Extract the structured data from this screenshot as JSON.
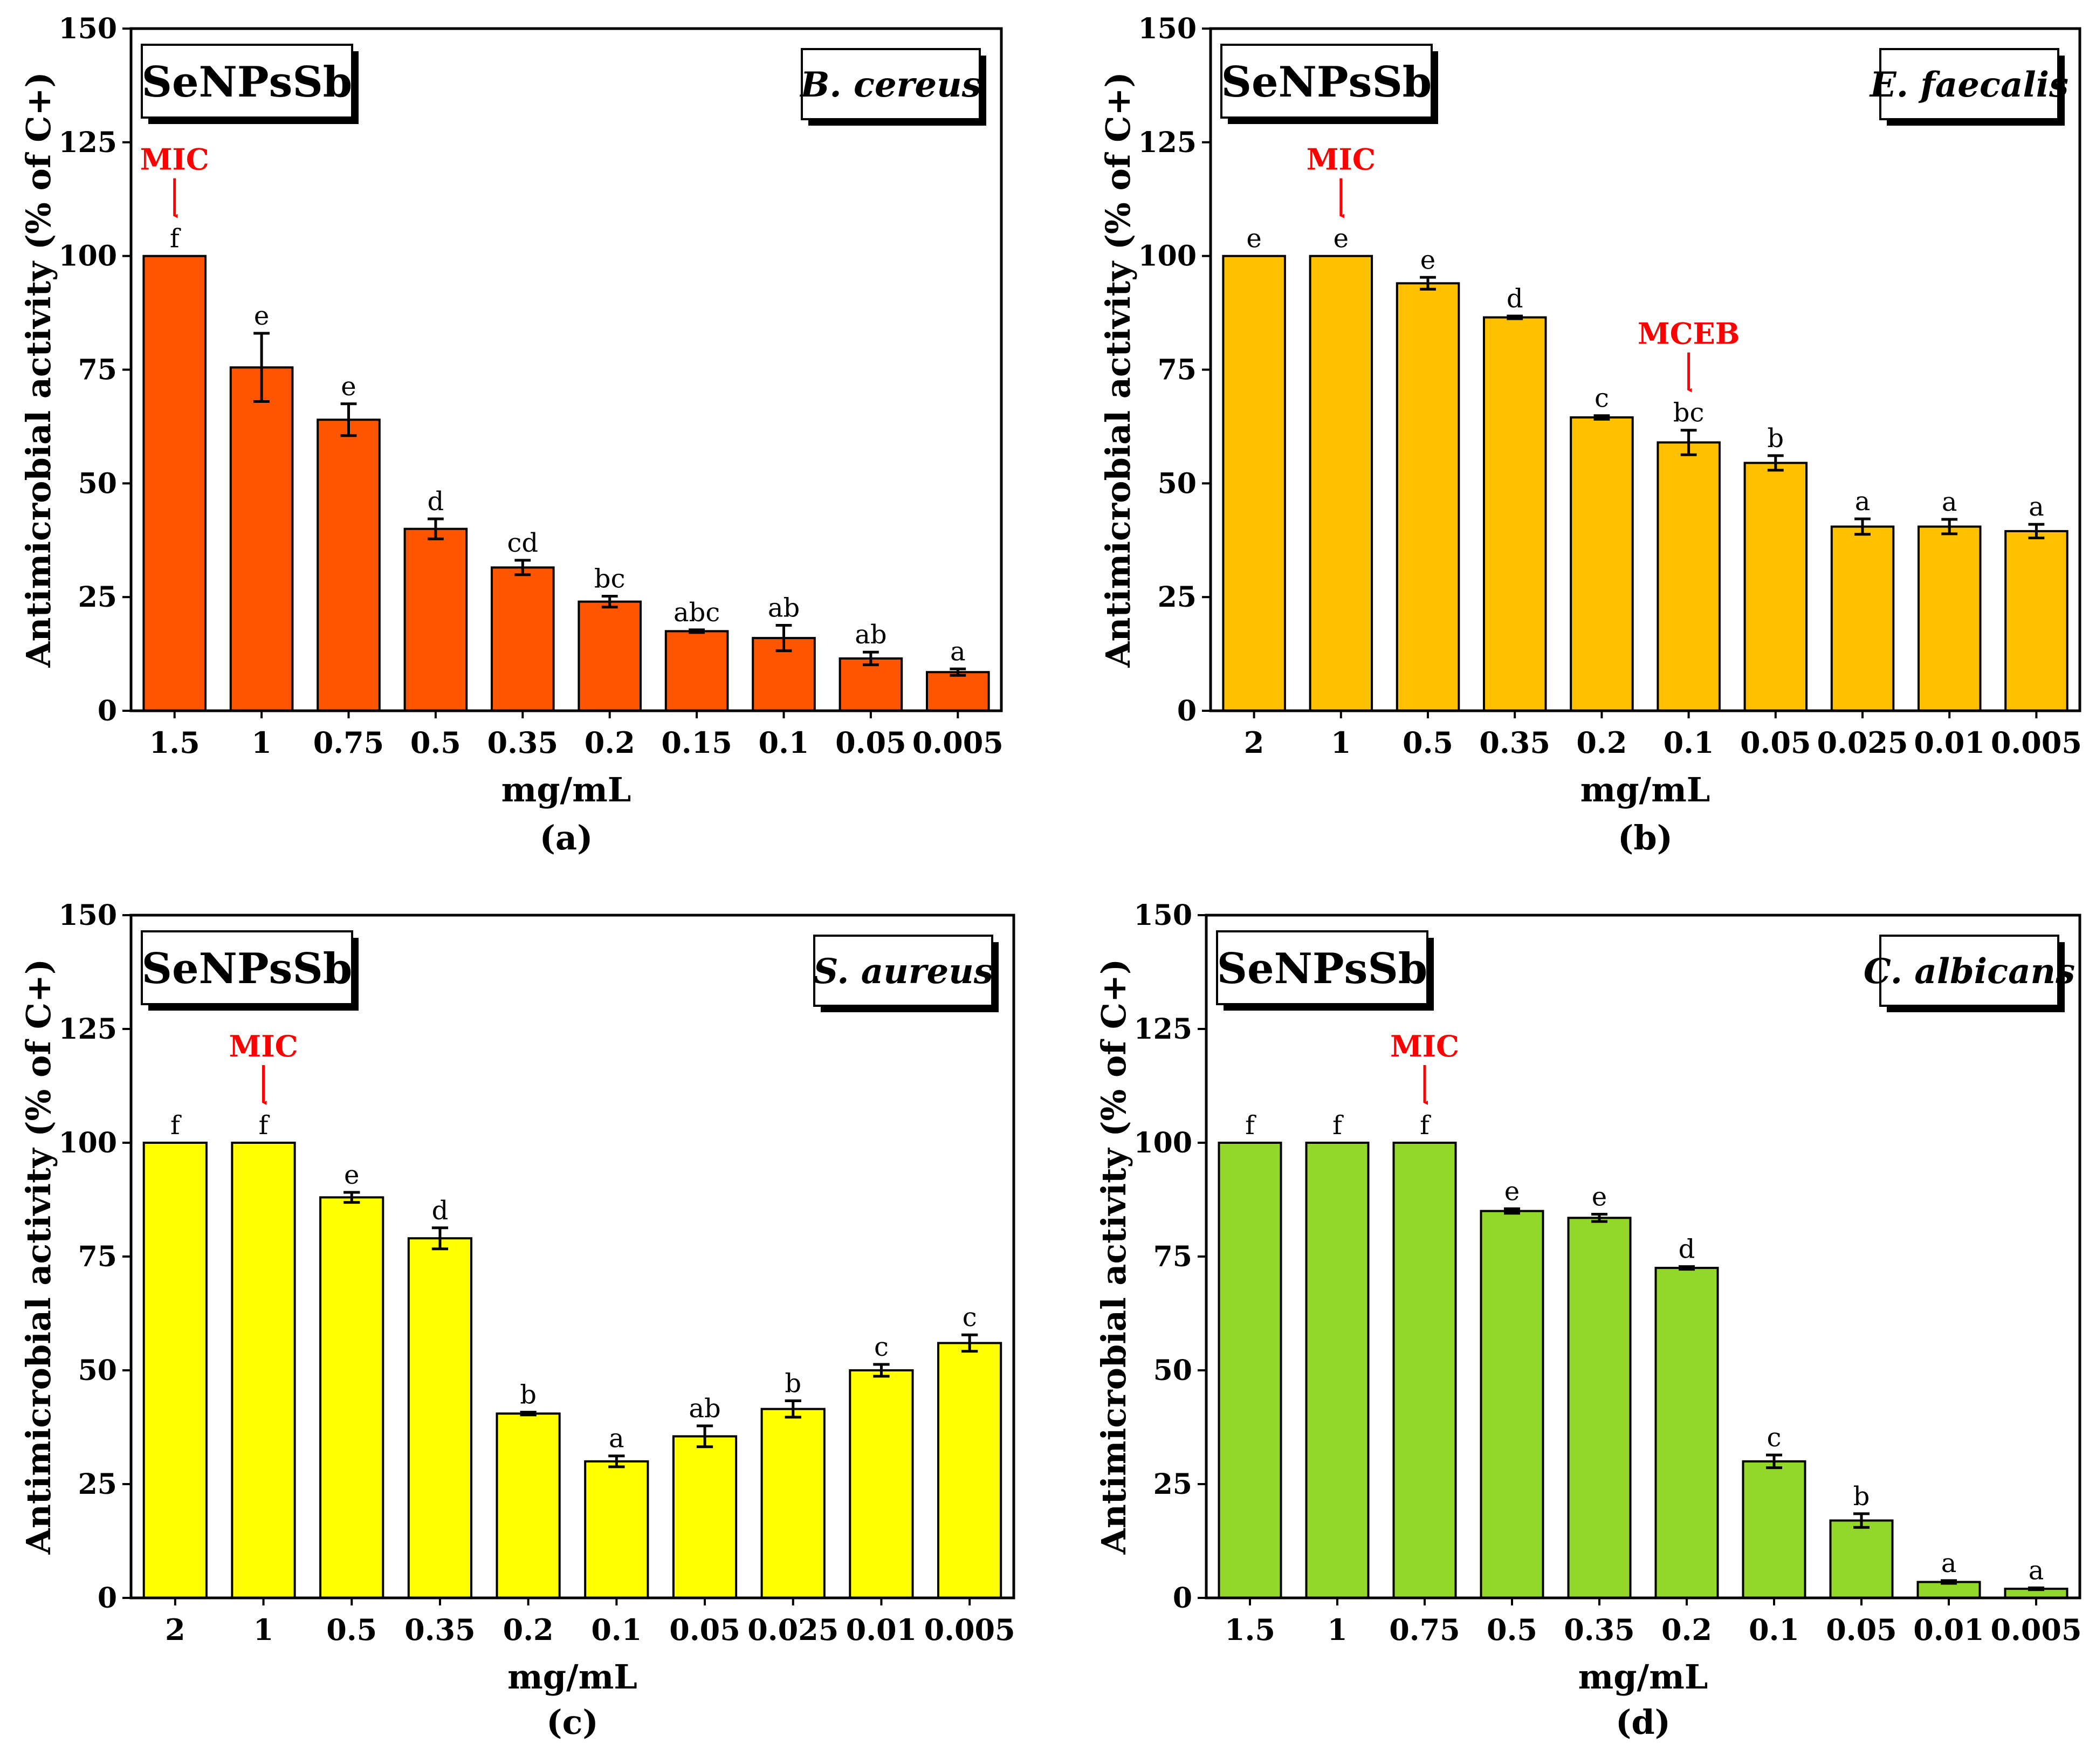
{
  "chart_data": [
    {
      "type": "bar",
      "panel_label": "(a)",
      "sample_label": "SeNPsSb",
      "organism": "B. cereus",
      "xlabel": "mg/mL",
      "ylabel": "Antimicrobial activity (% of C+)",
      "ylim": [
        0,
        150
      ],
      "yticks": [
        "0",
        "25",
        "50",
        "75",
        "100",
        "125",
        "150"
      ],
      "color": "#fe5500",
      "categories": [
        "1.5",
        "1",
        "0.75",
        "0.5",
        "0.35",
        "0.2",
        "0.15",
        "0.1",
        "0.05",
        "0.005"
      ],
      "values": [
        100,
        75.5,
        64,
        40,
        31.5,
        24,
        17.5,
        16,
        11.5,
        8.5
      ],
      "errors": [
        0,
        7.5,
        3.5,
        2.2,
        1.6,
        1.2,
        0.3,
        2.8,
        1.4,
        0.7
      ],
      "letters": [
        "f",
        "e",
        "e",
        "d",
        "cd",
        "bc",
        "abc",
        "ab",
        "ab",
        "a"
      ],
      "annotations": [
        {
          "text": "MIC",
          "index": 0
        }
      ]
    },
    {
      "type": "bar",
      "panel_label": "(b)",
      "sample_label": "SeNPsSb",
      "organism": "E. faecalis",
      "xlabel": "mg/mL",
      "ylabel": "Antimicrobial activity (% of C+)",
      "ylim": [
        0,
        150
      ],
      "yticks": [
        "0",
        "25",
        "50",
        "75",
        "100",
        "125",
        "150"
      ],
      "color": "#ffc000",
      "categories": [
        "2",
        "1",
        "0.5",
        "0.35",
        "0.2",
        "0.1",
        "0.05",
        "0.025",
        "0.01",
        "0.005"
      ],
      "values": [
        100,
        100,
        94,
        86.5,
        64.5,
        59,
        54.5,
        40.5,
        40.5,
        39.5
      ],
      "errors": [
        0,
        0,
        1.3,
        0.3,
        0.4,
        2.7,
        1.6,
        1.7,
        1.6,
        1.5
      ],
      "letters": [
        "e",
        "e",
        "e",
        "d",
        "c",
        "bc",
        "b",
        "a",
        "a",
        "a"
      ],
      "annotations": [
        {
          "text": "MIC",
          "index": 1
        },
        {
          "text": "MCEB",
          "index": 5
        }
      ]
    },
    {
      "type": "bar",
      "panel_label": "(c)",
      "sample_label": "SeNPsSb",
      "organism": "S. aureus",
      "xlabel": "mg/mL",
      "ylabel": "Antimicrobial activity (% of C+)",
      "ylim": [
        0,
        150
      ],
      "yticks": [
        "0",
        "25",
        "50",
        "75",
        "100",
        "125",
        "150"
      ],
      "color": "#ffff00",
      "categories": [
        "2",
        "1",
        "0.5",
        "0.35",
        "0.2",
        "0.1",
        "0.05",
        "0.025",
        "0.01",
        "0.005"
      ],
      "values": [
        100,
        100,
        88,
        79,
        40.5,
        30,
        35.5,
        41.5,
        50,
        56
      ],
      "errors": [
        0,
        0,
        1.1,
        2.3,
        0.3,
        1.2,
        2.3,
        1.8,
        1.3,
        1.8
      ],
      "letters": [
        "f",
        "f",
        "e",
        "d",
        "b",
        "a",
        "ab",
        "b",
        "c",
        "c"
      ],
      "annotations": [
        {
          "text": "MIC",
          "index": 1
        }
      ]
    },
    {
      "type": "bar",
      "panel_label": "(d)",
      "sample_label": "SeNPsSb",
      "organism": "C. albicans",
      "xlabel": "mg/mL",
      "ylabel": "Antimicrobial activity (% of C+)",
      "ylim": [
        0,
        150
      ],
      "yticks": [
        "0",
        "25",
        "50",
        "75",
        "100",
        "125",
        "150"
      ],
      "color": "#92d72a",
      "categories": [
        "1.5",
        "1",
        "0.75",
        "0.5",
        "0.35",
        "0.2",
        "0.1",
        "0.05",
        "0.01",
        "0.005"
      ],
      "values": [
        100,
        100,
        100,
        85,
        83.5,
        72.5,
        30,
        17,
        3.5,
        2
      ],
      "errors": [
        0,
        0,
        0,
        0.5,
        0.8,
        0.3,
        1.4,
        1.5,
        0.3,
        0.2
      ],
      "letters": [
        "f",
        "f",
        "f",
        "e",
        "e",
        "d",
        "c",
        "b",
        "a",
        "a"
      ],
      "annotations": [
        {
          "text": "MIC",
          "index": 2
        }
      ]
    }
  ]
}
